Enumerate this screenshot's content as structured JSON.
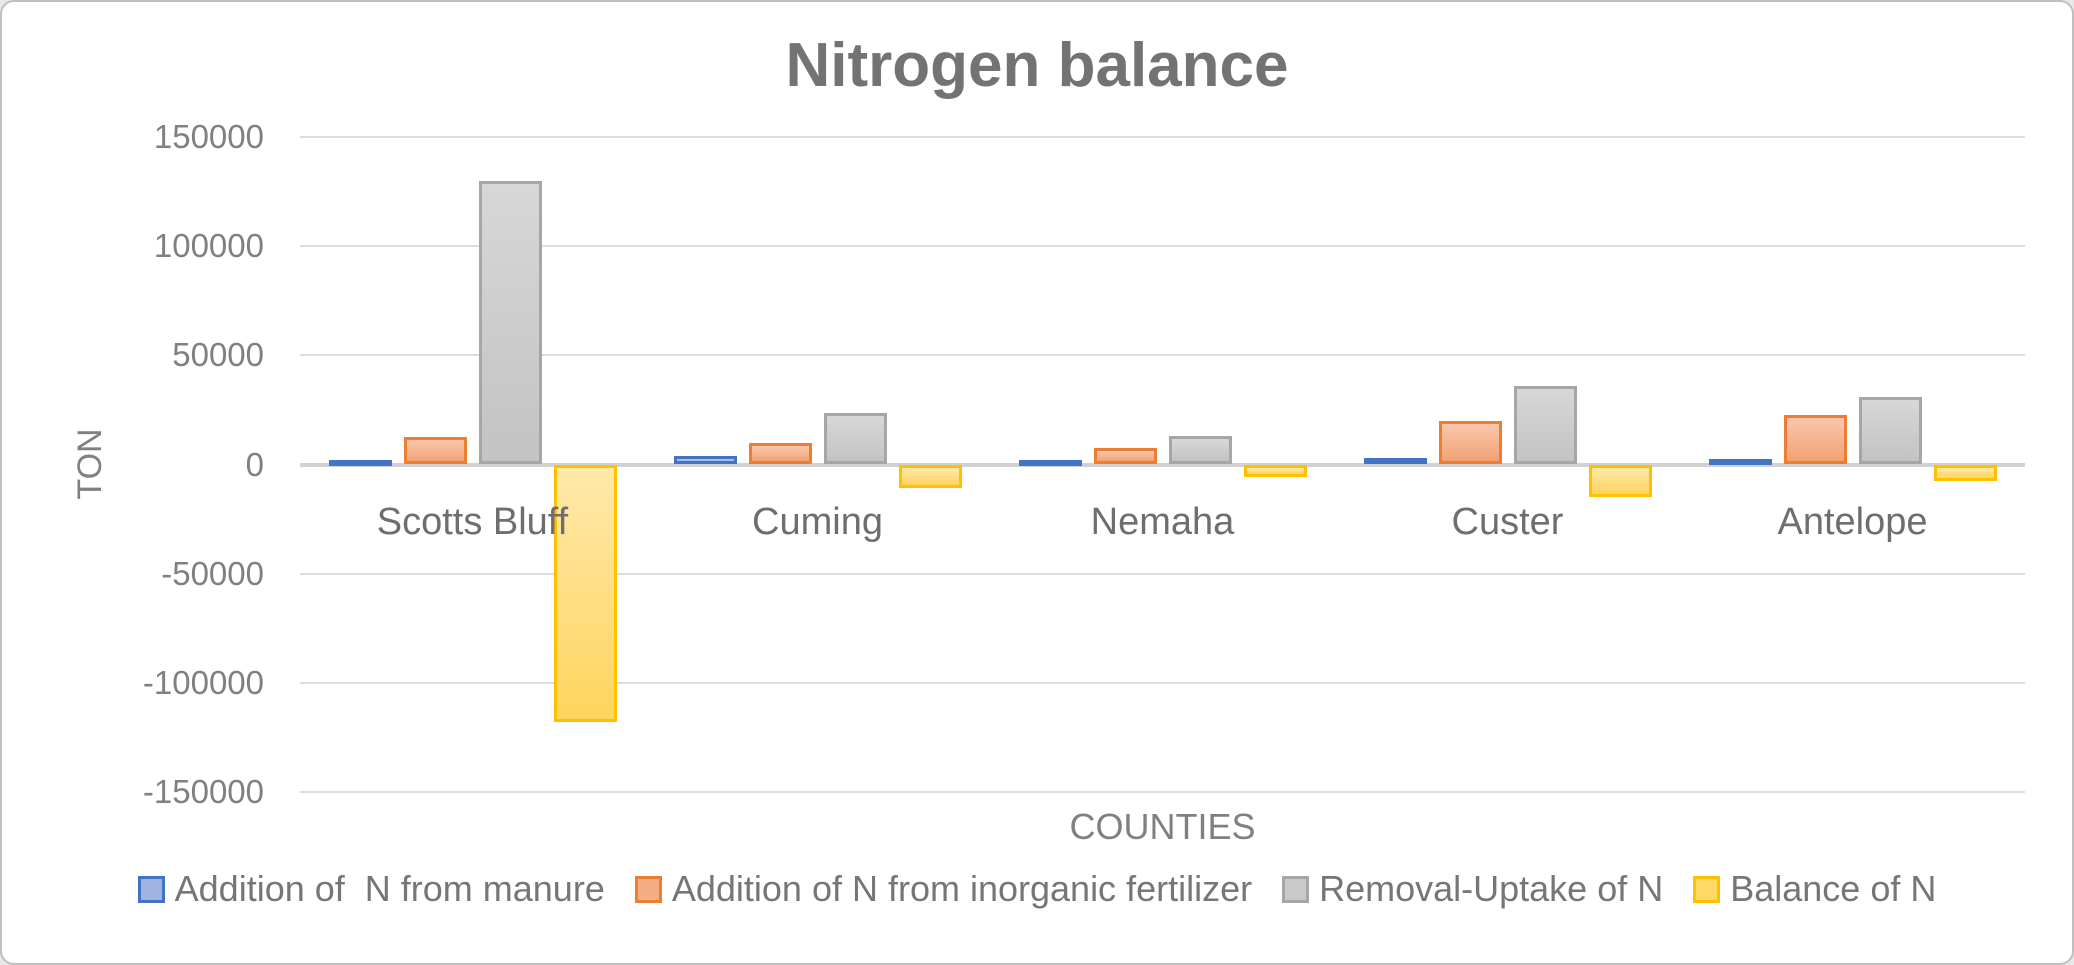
{
  "chart_data": {
    "type": "bar",
    "title": "Nitrogen balance",
    "xlabel": "COUNTIES",
    "ylabel": "TON",
    "categories": [
      "Scotts Bluff",
      "Cuming",
      "Nemaha",
      "Custer",
      "Antelope"
    ],
    "series": [
      {
        "name": "Addition of  N from manure",
        "values": [
          2000,
          3700,
          1400,
          2800,
          2300
        ],
        "border_color": "#4472C4",
        "fill_top": "#B8C7E9",
        "fill_bottom": "#9AB0DE",
        "swatch_fill": "#9FB4E0"
      },
      {
        "name": "Addition of N from inorganic fertilizer",
        "values": [
          12500,
          9700,
          7400,
          19900,
          22800
        ],
        "border_color": "#ED7D31",
        "fill_top": "#F9C7AE",
        "fill_bottom": "#F2A274",
        "swatch_fill": "#F4AD85"
      },
      {
        "name": "Removal-Uptake of N",
        "values": [
          130000,
          23600,
          13000,
          36100,
          31000
        ],
        "border_color": "#A6A6A6",
        "fill_top": "#D7D7D7",
        "fill_bottom": "#C3C3C3",
        "swatch_fill": "#C9C9C9"
      },
      {
        "name": "Balance of N",
        "values": [
          -118000,
          -10600,
          -5500,
          -14800,
          -7400
        ],
        "border_color": "#FFC000",
        "fill_top": "#FFE9A9",
        "fill_bottom": "#FFD45F",
        "swatch_fill": "#FFD966"
      }
    ],
    "ylim": [
      -150000,
      150000
    ],
    "ytick_step": 50000,
    "ytick_labels": [
      "150000",
      "100000",
      "50000",
      "0",
      "-50000",
      "-100000",
      "-150000"
    ],
    "grid": true,
    "legend_position": "bottom",
    "text_colors": {
      "title": "#737373",
      "axis_labels": "#808080",
      "category_labels": "#6e6e6e",
      "legend": "#767676"
    },
    "gridline_color": "#dcdcdc",
    "axis_line_color": "#d2d2d2"
  }
}
